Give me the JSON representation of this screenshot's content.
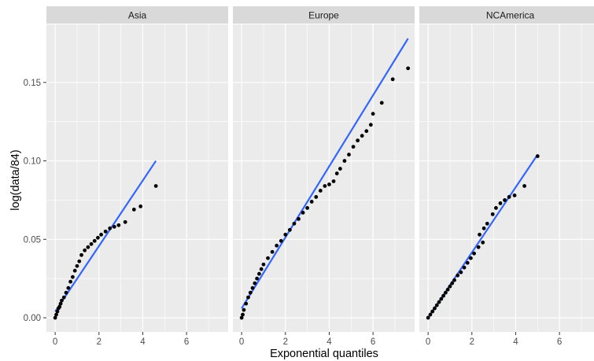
{
  "chart_data": {
    "type": "scatter",
    "xlabel": "Exponential quantiles",
    "ylabel": "log(data/84)",
    "x_ticks": [
      0,
      2,
      4,
      6
    ],
    "x_tick_labels": [
      "0",
      "2",
      "4",
      "6"
    ],
    "y_ticks": [
      0.0,
      0.05,
      0.1,
      0.15
    ],
    "y_tick_labels": [
      "0.00",
      "0.05",
      "0.10",
      "0.15"
    ],
    "xlim": [
      -0.4,
      7.9
    ],
    "ylim": [
      -0.009,
      0.187
    ],
    "grid": true,
    "colors": {
      "panel_bg": "#ebebeb",
      "strip_bg": "#d9d9d9",
      "grid": "#ffffff",
      "point": "#000000",
      "line": "#3366ff"
    },
    "panels": [
      {
        "name": "Asia",
        "line": {
          "x": [
            0,
            4.6
          ],
          "y": [
            0.004,
            0.1
          ]
        },
        "points": [
          {
            "x": 0.0,
            "y": 0.0
          },
          {
            "x": 0.05,
            "y": 0.002
          },
          {
            "x": 0.1,
            "y": 0.004
          },
          {
            "x": 0.15,
            "y": 0.006
          },
          {
            "x": 0.2,
            "y": 0.007
          },
          {
            "x": 0.25,
            "y": 0.009
          },
          {
            "x": 0.3,
            "y": 0.011
          },
          {
            "x": 0.4,
            "y": 0.013
          },
          {
            "x": 0.5,
            "y": 0.016
          },
          {
            "x": 0.6,
            "y": 0.019
          },
          {
            "x": 0.7,
            "y": 0.023
          },
          {
            "x": 0.8,
            "y": 0.026
          },
          {
            "x": 0.9,
            "y": 0.03
          },
          {
            "x": 1.0,
            "y": 0.033
          },
          {
            "x": 1.1,
            "y": 0.036
          },
          {
            "x": 1.2,
            "y": 0.04
          },
          {
            "x": 1.35,
            "y": 0.043
          },
          {
            "x": 1.5,
            "y": 0.045
          },
          {
            "x": 1.65,
            "y": 0.047
          },
          {
            "x": 1.8,
            "y": 0.049
          },
          {
            "x": 1.95,
            "y": 0.051
          },
          {
            "x": 2.1,
            "y": 0.053
          },
          {
            "x": 2.3,
            "y": 0.055
          },
          {
            "x": 2.5,
            "y": 0.057
          },
          {
            "x": 2.7,
            "y": 0.058
          },
          {
            "x": 2.9,
            "y": 0.059
          },
          {
            "x": 3.2,
            "y": 0.061
          },
          {
            "x": 3.6,
            "y": 0.069
          },
          {
            "x": 3.9,
            "y": 0.071
          },
          {
            "x": 4.6,
            "y": 0.084
          }
        ]
      },
      {
        "name": "Europe",
        "line": {
          "x": [
            0,
            7.6
          ],
          "y": [
            0.006,
            0.178
          ]
        },
        "points": [
          {
            "x": 0.0,
            "y": 0.0
          },
          {
            "x": 0.05,
            "y": 0.002
          },
          {
            "x": 0.1,
            "y": 0.005
          },
          {
            "x": 0.2,
            "y": 0.009
          },
          {
            "x": 0.3,
            "y": 0.013
          },
          {
            "x": 0.4,
            "y": 0.016
          },
          {
            "x": 0.5,
            "y": 0.019
          },
          {
            "x": 0.6,
            "y": 0.022
          },
          {
            "x": 0.7,
            "y": 0.025
          },
          {
            "x": 0.8,
            "y": 0.028
          },
          {
            "x": 0.9,
            "y": 0.031
          },
          {
            "x": 1.0,
            "y": 0.034
          },
          {
            "x": 1.2,
            "y": 0.038
          },
          {
            "x": 1.4,
            "y": 0.042
          },
          {
            "x": 1.6,
            "y": 0.046
          },
          {
            "x": 1.8,
            "y": 0.049
          },
          {
            "x": 2.0,
            "y": 0.053
          },
          {
            "x": 2.2,
            "y": 0.056
          },
          {
            "x": 2.4,
            "y": 0.06
          },
          {
            "x": 2.6,
            "y": 0.063
          },
          {
            "x": 2.8,
            "y": 0.067
          },
          {
            "x": 3.0,
            "y": 0.07
          },
          {
            "x": 3.2,
            "y": 0.074
          },
          {
            "x": 3.4,
            "y": 0.077
          },
          {
            "x": 3.6,
            "y": 0.081
          },
          {
            "x": 3.8,
            "y": 0.084
          },
          {
            "x": 4.0,
            "y": 0.085
          },
          {
            "x": 4.2,
            "y": 0.087
          },
          {
            "x": 4.35,
            "y": 0.092
          },
          {
            "x": 4.5,
            "y": 0.095
          },
          {
            "x": 4.7,
            "y": 0.1
          },
          {
            "x": 4.9,
            "y": 0.104
          },
          {
            "x": 5.1,
            "y": 0.109
          },
          {
            "x": 5.3,
            "y": 0.113
          },
          {
            "x": 5.5,
            "y": 0.116
          },
          {
            "x": 5.7,
            "y": 0.119
          },
          {
            "x": 5.9,
            "y": 0.123
          },
          {
            "x": 6.0,
            "y": 0.13
          },
          {
            "x": 6.4,
            "y": 0.137
          },
          {
            "x": 6.9,
            "y": 0.152
          },
          {
            "x": 7.6,
            "y": 0.159
          }
        ]
      },
      {
        "name": "NCAmerica",
        "line": {
          "x": [
            0,
            5.0
          ],
          "y": [
            0.0,
            0.104
          ]
        },
        "points": [
          {
            "x": 0.0,
            "y": 0.0
          },
          {
            "x": 0.1,
            "y": 0.002
          },
          {
            "x": 0.2,
            "y": 0.004
          },
          {
            "x": 0.3,
            "y": 0.006
          },
          {
            "x": 0.4,
            "y": 0.008
          },
          {
            "x": 0.5,
            "y": 0.01
          },
          {
            "x": 0.6,
            "y": 0.012
          },
          {
            "x": 0.7,
            "y": 0.014
          },
          {
            "x": 0.8,
            "y": 0.016
          },
          {
            "x": 0.9,
            "y": 0.018
          },
          {
            "x": 1.0,
            "y": 0.02
          },
          {
            "x": 1.1,
            "y": 0.022
          },
          {
            "x": 1.2,
            "y": 0.024
          },
          {
            "x": 1.35,
            "y": 0.027
          },
          {
            "x": 1.5,
            "y": 0.029
          },
          {
            "x": 1.65,
            "y": 0.032
          },
          {
            "x": 1.8,
            "y": 0.035
          },
          {
            "x": 1.95,
            "y": 0.038
          },
          {
            "x": 2.1,
            "y": 0.041
          },
          {
            "x": 2.3,
            "y": 0.045
          },
          {
            "x": 2.5,
            "y": 0.048
          },
          {
            "x": 2.35,
            "y": 0.053
          },
          {
            "x": 2.55,
            "y": 0.057
          },
          {
            "x": 2.7,
            "y": 0.06
          },
          {
            "x": 2.95,
            "y": 0.066
          },
          {
            "x": 3.1,
            "y": 0.07
          },
          {
            "x": 3.3,
            "y": 0.073
          },
          {
            "x": 3.5,
            "y": 0.075
          },
          {
            "x": 3.7,
            "y": 0.077
          },
          {
            "x": 3.95,
            "y": 0.078
          },
          {
            "x": 4.4,
            "y": 0.084
          },
          {
            "x": 5.0,
            "y": 0.103
          }
        ]
      }
    ]
  }
}
